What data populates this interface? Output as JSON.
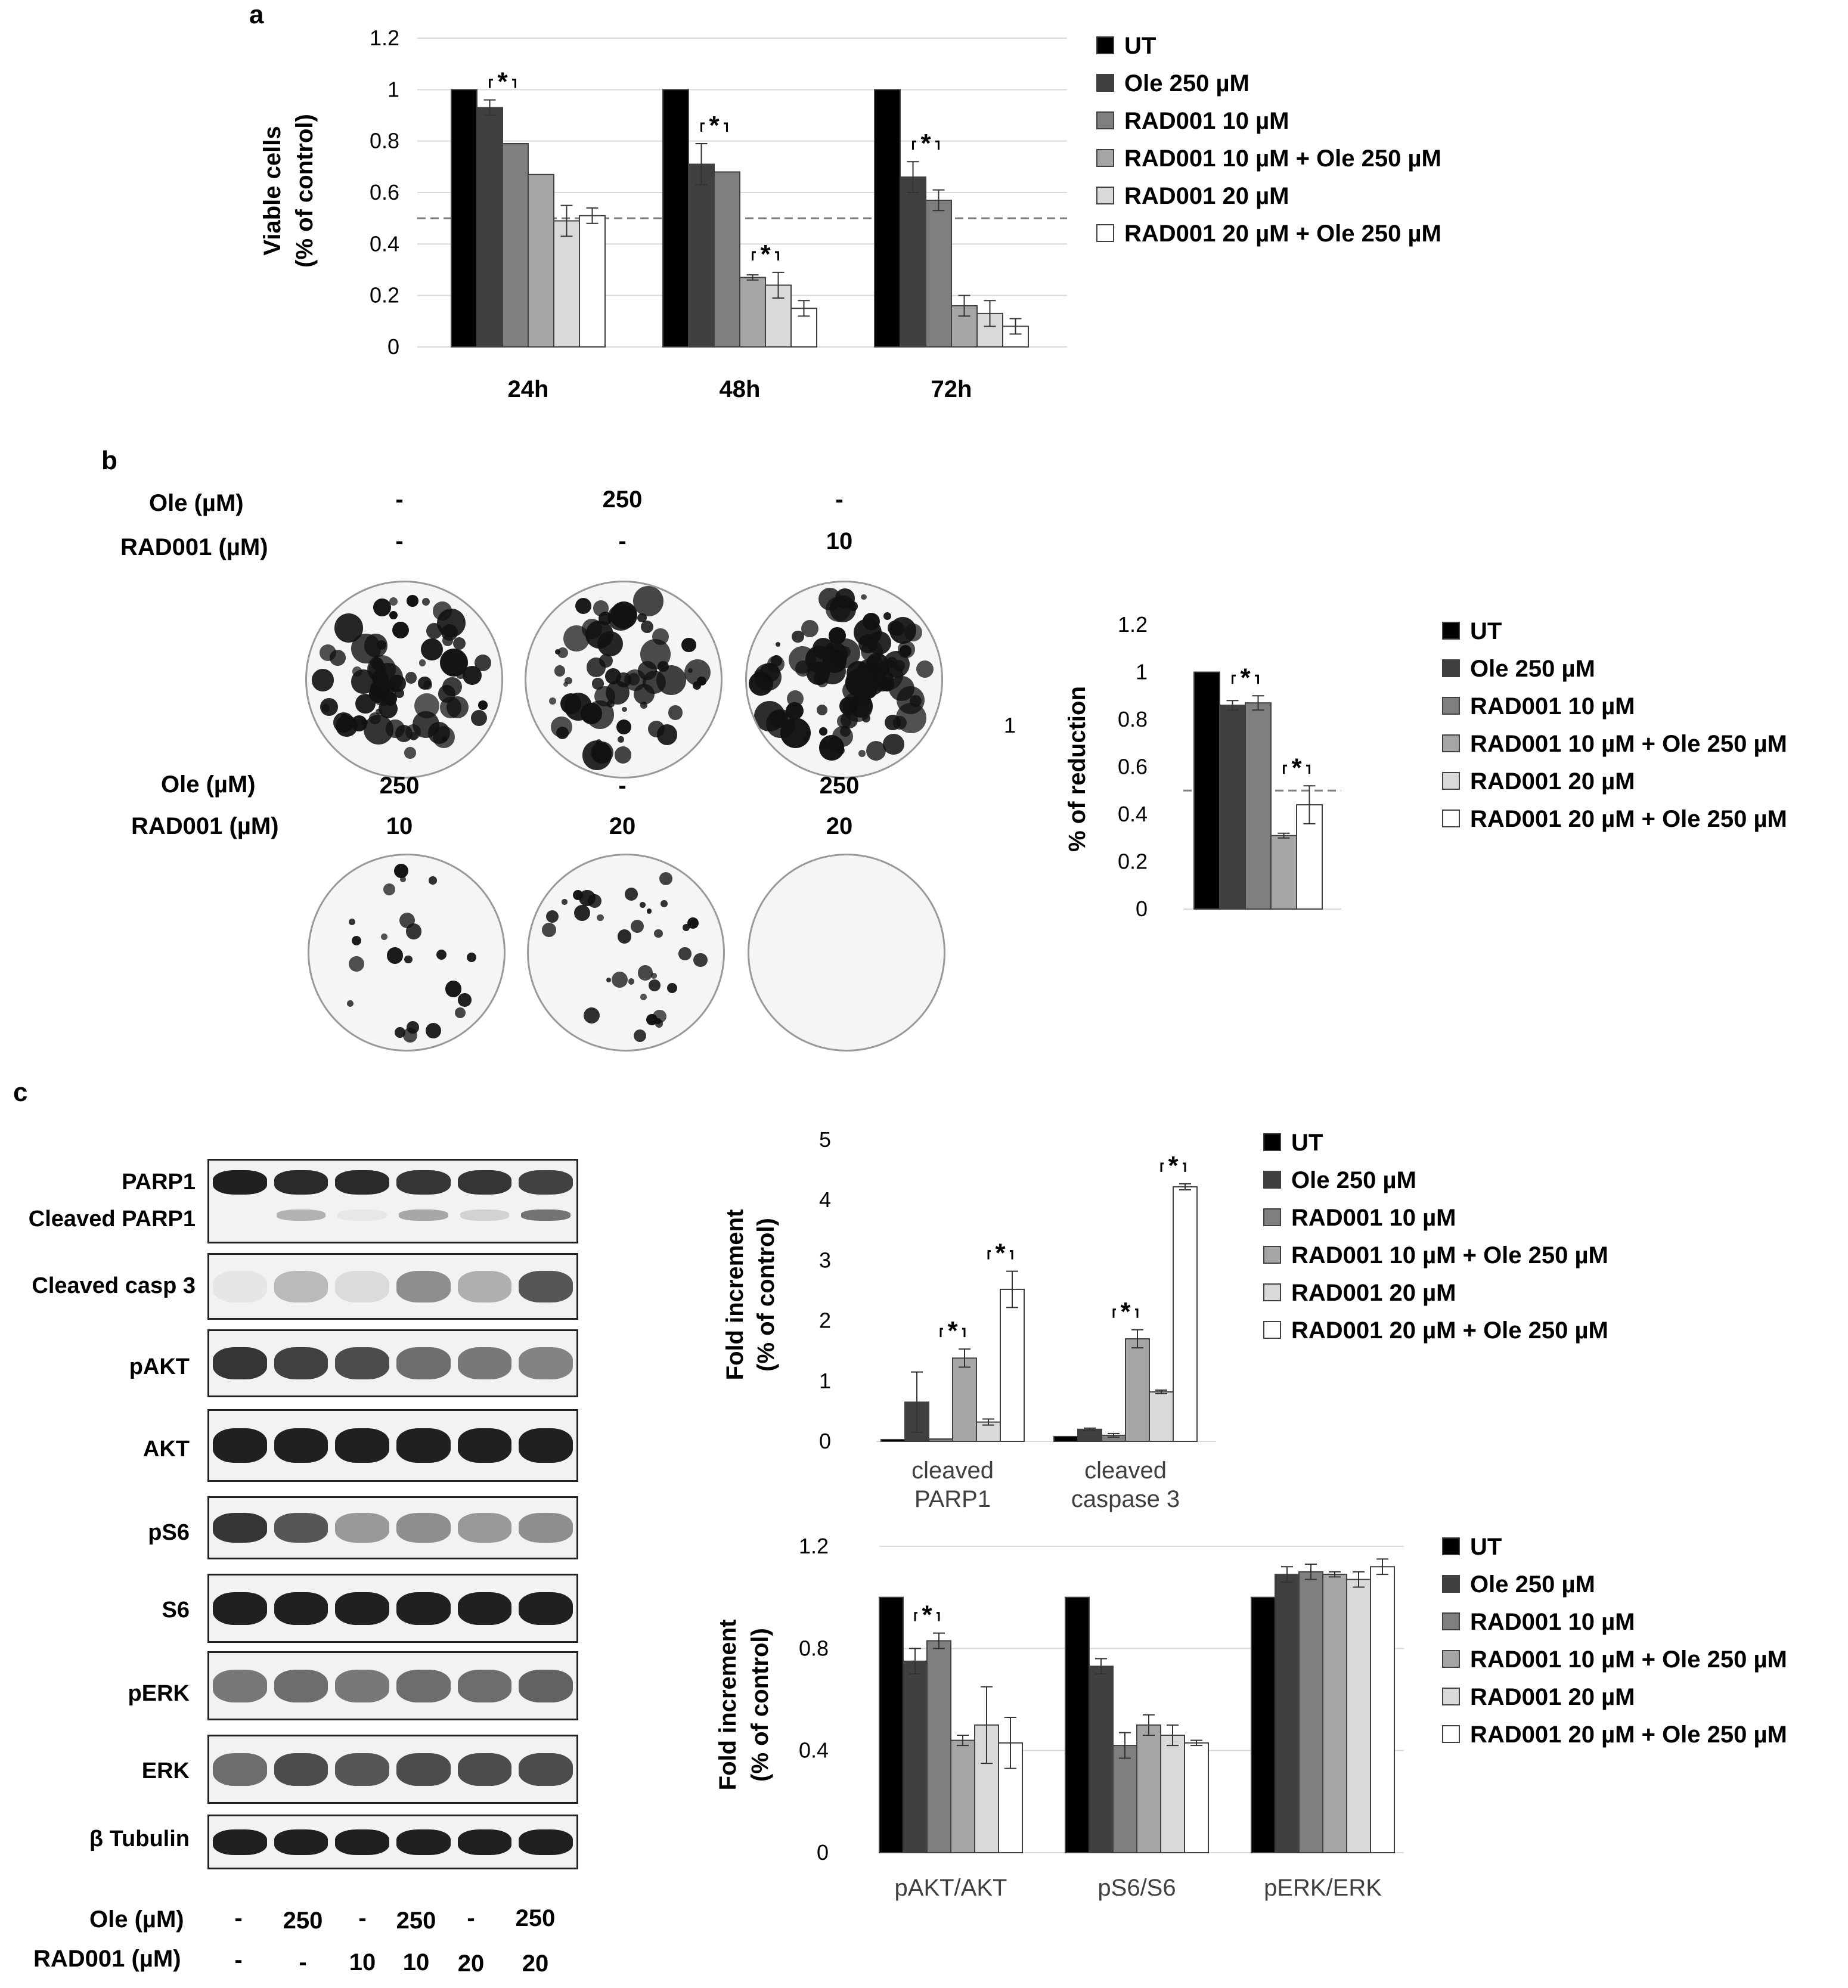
{
  "panels": {
    "a": "a",
    "b": "b",
    "c": "c"
  },
  "legend": {
    "items": [
      "UT",
      "Ole 250 µM",
      "RAD001 10 µM",
      "RAD001 10 µM + Ole 250 µM",
      "RAD001 20 µM",
      "RAD001 20 µM + Ole 250 µM"
    ],
    "colors": [
      "#000000",
      "#404040",
      "#7f7f7f",
      "#a6a6a6",
      "#d9d9d9",
      "#ffffff"
    ]
  },
  "significance_mark": "*",
  "colony_panel": {
    "top": {
      "ole_label": "Ole (µM)",
      "rad_label": "RAD001 (µM)",
      "ole": [
        "-",
        "250",
        "-"
      ],
      "rad": [
        "-",
        "-",
        "10"
      ]
    },
    "bottom": {
      "ole_label": "Ole (µM)",
      "rad_label": "RAD001 (µM)",
      "ole": [
        "250",
        "-",
        "250"
      ],
      "rad": [
        "10",
        "20",
        "20"
      ]
    },
    "stray_text": "1"
  },
  "blot_panel": {
    "labels": {
      "parp1": "PARP1",
      "cleaved_parp1": "Cleaved PARP1",
      "casp3": "Cleaved casp 3",
      "pakt": "pAKT",
      "akt": "AKT",
      "ps6": "pS6",
      "s6": "S6",
      "perk": "pERK",
      "erk": "ERK",
      "tubulin": "β Tubulin"
    },
    "ole_label": "Ole (µM)",
    "rad_label": "RAD001 (µM)",
    "ole": [
      "-",
      "250",
      "-",
      "250",
      "-",
      "250"
    ],
    "rad": [
      "-",
      "-",
      "10",
      "10",
      "20",
      "20"
    ]
  },
  "chart_data": [
    {
      "type": "bar",
      "id": "viability",
      "title": "",
      "xlabel": "",
      "ylabel": "Viable cells",
      "ylabel2": "(% of control)",
      "categories": [
        "24h",
        "48h",
        "72h"
      ],
      "yticks": [
        "0",
        "0.2",
        "0.4",
        "0.6",
        "0.8",
        "1",
        "1.2"
      ],
      "ylim": [
        0,
        1.2
      ],
      "reference_line": 0.5,
      "series": [
        {
          "name": "UT",
          "values": [
            1.0,
            1.0,
            1.0
          ],
          "errors": [
            0,
            0,
            0
          ]
        },
        {
          "name": "Ole 250 µM",
          "values": [
            0.93,
            0.71,
            0.66
          ],
          "errors": [
            0.03,
            0.08,
            0.06
          ]
        },
        {
          "name": "RAD001 10 µM",
          "values": [
            0.79,
            0.68,
            0.57
          ],
          "errors": [
            0.0,
            0.0,
            0.04
          ]
        },
        {
          "name": "RAD001 10 µM + Ole 250 µM",
          "values": [
            0.67,
            0.27,
            0.16
          ],
          "errors": [
            0.0,
            0.01,
            0.04
          ]
        },
        {
          "name": "RAD001 20 µM",
          "values": [
            0.49,
            0.24,
            0.13
          ],
          "errors": [
            0.06,
            0.05,
            0.05
          ]
        },
        {
          "name": "RAD001 20 µM + Ole 250 µM",
          "values": [
            0.51,
            0.15,
            0.08
          ],
          "errors": [
            0.03,
            0.03,
            0.03
          ]
        }
      ],
      "significance": [
        [
          0,
          1,
          2
        ],
        [
          1,
          1,
          2
        ],
        [
          1,
          3,
          4
        ],
        [
          2,
          1,
          2
        ]
      ]
    },
    {
      "type": "bar",
      "id": "colony",
      "title": "",
      "xlabel": "",
      "ylabel": "% of reduction",
      "categories": [
        ""
      ],
      "yticks": [
        "0",
        "0.2",
        "0.4",
        "0.6",
        "0.8",
        "1",
        "1.2"
      ],
      "ylim": [
        0,
        1.2
      ],
      "reference_line": 0.5,
      "series": [
        {
          "name": "UT",
          "values": [
            1.0
          ],
          "errors": [
            0
          ]
        },
        {
          "name": "Ole 250 µM",
          "values": [
            0.86
          ],
          "errors": [
            0.02
          ]
        },
        {
          "name": "RAD001 10 µM",
          "values": [
            0.87
          ],
          "errors": [
            0.03
          ]
        },
        {
          "name": "RAD001 10 µM + Ole 250 µM",
          "values": [
            0.31
          ],
          "errors": [
            0.01
          ]
        },
        {
          "name": "RAD001 20 µM + Ole 250 µM",
          "values": [
            0.44
          ],
          "errors": [
            0.08
          ]
        }
      ],
      "significance": [
        [
          0,
          1,
          2
        ],
        [
          0,
          3,
          4
        ]
      ]
    },
    {
      "type": "bar",
      "id": "apoptosis",
      "title": "",
      "xlabel": "",
      "ylabel": "Fold increment",
      "ylabel2": "(% of control)",
      "categories": [
        "cleaved PARP1",
        "cleaved caspase 3"
      ],
      "category_lines": [
        [
          "cleaved",
          "PARP1"
        ],
        [
          "cleaved",
          "caspase 3"
        ]
      ],
      "yticks": [
        "0",
        "1",
        "2",
        "3",
        "4",
        "5"
      ],
      "ylim": [
        0,
        5
      ],
      "series": [
        {
          "name": "UT",
          "values": [
            0.03,
            0.08
          ],
          "errors": [
            0,
            0
          ]
        },
        {
          "name": "Ole 250 µM",
          "values": [
            0.65,
            0.2
          ],
          "errors": [
            0.5,
            0.02
          ]
        },
        {
          "name": "RAD001 10 µM",
          "values": [
            0.04,
            0.1
          ],
          "errors": [
            0.0,
            0.03
          ]
        },
        {
          "name": "RAD001 10 µM + Ole 250 µM",
          "values": [
            1.38,
            1.7
          ],
          "errors": [
            0.15,
            0.15
          ]
        },
        {
          "name": "RAD001 20 µM",
          "values": [
            0.32,
            0.82
          ],
          "errors": [
            0.05,
            0.03
          ]
        },
        {
          "name": "RAD001 20 µM + Ole 250 µM",
          "values": [
            2.52,
            4.22
          ],
          "errors": [
            0.3,
            0.05
          ]
        }
      ],
      "significance": [
        [
          0,
          2,
          3
        ],
        [
          0,
          4,
          5
        ],
        [
          1,
          2,
          3
        ],
        [
          1,
          4,
          5
        ]
      ]
    },
    {
      "type": "bar",
      "id": "signaling",
      "title": "",
      "xlabel": "",
      "ylabel": "Fold increment",
      "ylabel2": "(% of control)",
      "categories": [
        "pAKT/AKT",
        "pS6/S6",
        "pERK/ERK"
      ],
      "yticks": [
        "0",
        "0.4",
        "0.8",
        "1.2"
      ],
      "ytick_values": [
        0,
        0.4,
        0.8,
        1.2
      ],
      "ylim": [
        0,
        1.2
      ],
      "series": [
        {
          "name": "UT",
          "values": [
            1.0,
            1.0,
            1.0
          ],
          "errors": [
            0,
            0,
            0
          ]
        },
        {
          "name": "Ole 250 µM",
          "values": [
            0.75,
            0.73,
            1.09
          ],
          "errors": [
            0.05,
            0.03,
            0.03
          ]
        },
        {
          "name": "RAD001 10 µM",
          "values": [
            0.83,
            0.42,
            1.1
          ],
          "errors": [
            0.03,
            0.05,
            0.03
          ]
        },
        {
          "name": "RAD001 10 µM + Ole 250 µM",
          "values": [
            0.44,
            0.5,
            1.09
          ],
          "errors": [
            0.02,
            0.04,
            0.01
          ]
        },
        {
          "name": "RAD001 20 µM",
          "values": [
            0.5,
            0.46,
            1.07
          ],
          "errors": [
            0.15,
            0.04,
            0.03
          ]
        },
        {
          "name": "RAD001 20 µM + Ole 250 µM",
          "values": [
            0.43,
            0.43,
            1.12
          ],
          "errors": [
            0.1,
            0.01,
            0.03
          ]
        }
      ],
      "significance": [
        [
          0,
          1,
          2
        ]
      ]
    }
  ]
}
